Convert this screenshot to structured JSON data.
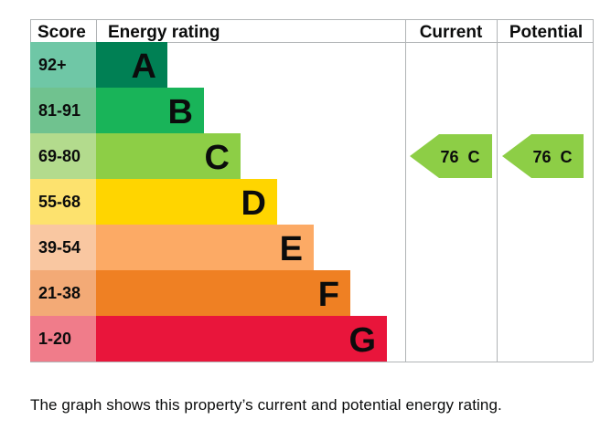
{
  "chart_data": {
    "type": "table",
    "headers": {
      "score": "Score",
      "rating": "Energy rating",
      "current": "Current",
      "potential": "Potential"
    },
    "bands": [
      {
        "score": "92+",
        "letter": "A",
        "color": "#008054",
        "score_bg": "#6fc7a6"
      },
      {
        "score": "81-91",
        "letter": "B",
        "color": "#19b459",
        "score_bg": "#70c28f"
      },
      {
        "score": "69-80",
        "letter": "C",
        "color": "#8dce46",
        "score_bg": "#b3db8d"
      },
      {
        "score": "55-68",
        "letter": "D",
        "color": "#ffd500",
        "score_bg": "#fde26e"
      },
      {
        "score": "39-54",
        "letter": "E",
        "color": "#fcaa65",
        "score_bg": "#f9c7a1"
      },
      {
        "score": "21-38",
        "letter": "F",
        "color": "#ef8023",
        "score_bg": "#f3aa76"
      },
      {
        "score": "1-20",
        "letter": "G",
        "color": "#e9153b",
        "score_bg": "#f07c8a"
      }
    ],
    "current": {
      "value": 76,
      "band": "C",
      "label": "76  C"
    },
    "potential": {
      "value": 76,
      "band": "C",
      "label": "76  C"
    }
  },
  "caption": "The graph shows this property’s current and potential energy rating."
}
